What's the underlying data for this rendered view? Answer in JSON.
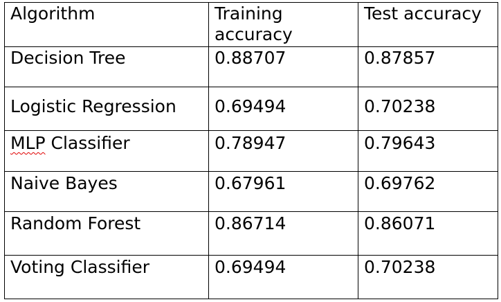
{
  "table": {
    "headers": [
      "Algorithm",
      "Training accuracy",
      "Test accuracy"
    ],
    "rows": [
      {
        "algorithm": "Decision Tree",
        "train": "0.88707",
        "test": "0.87857"
      },
      {
        "algorithm": "Logistic Regression",
        "train": "0.69494",
        "test": "0.70238"
      },
      {
        "algorithm_prefix": "MLP",
        "algorithm_suffix": " Classifier",
        "train": "0.78947",
        "test": "0.79643"
      },
      {
        "algorithm": "Naive Bayes",
        "train": "0.67961",
        "test": "0.69762"
      },
      {
        "algorithm": "Random Forest",
        "train": "0.86714",
        "test": "0.86071"
      },
      {
        "algorithm": "Voting Classifier",
        "train": "0.69494",
        "test": "0.70238"
      }
    ]
  },
  "colors": {
    "text": "#000000",
    "border": "#000000",
    "spellcheck_underline": "#e00000",
    "background": "#ffffff"
  }
}
